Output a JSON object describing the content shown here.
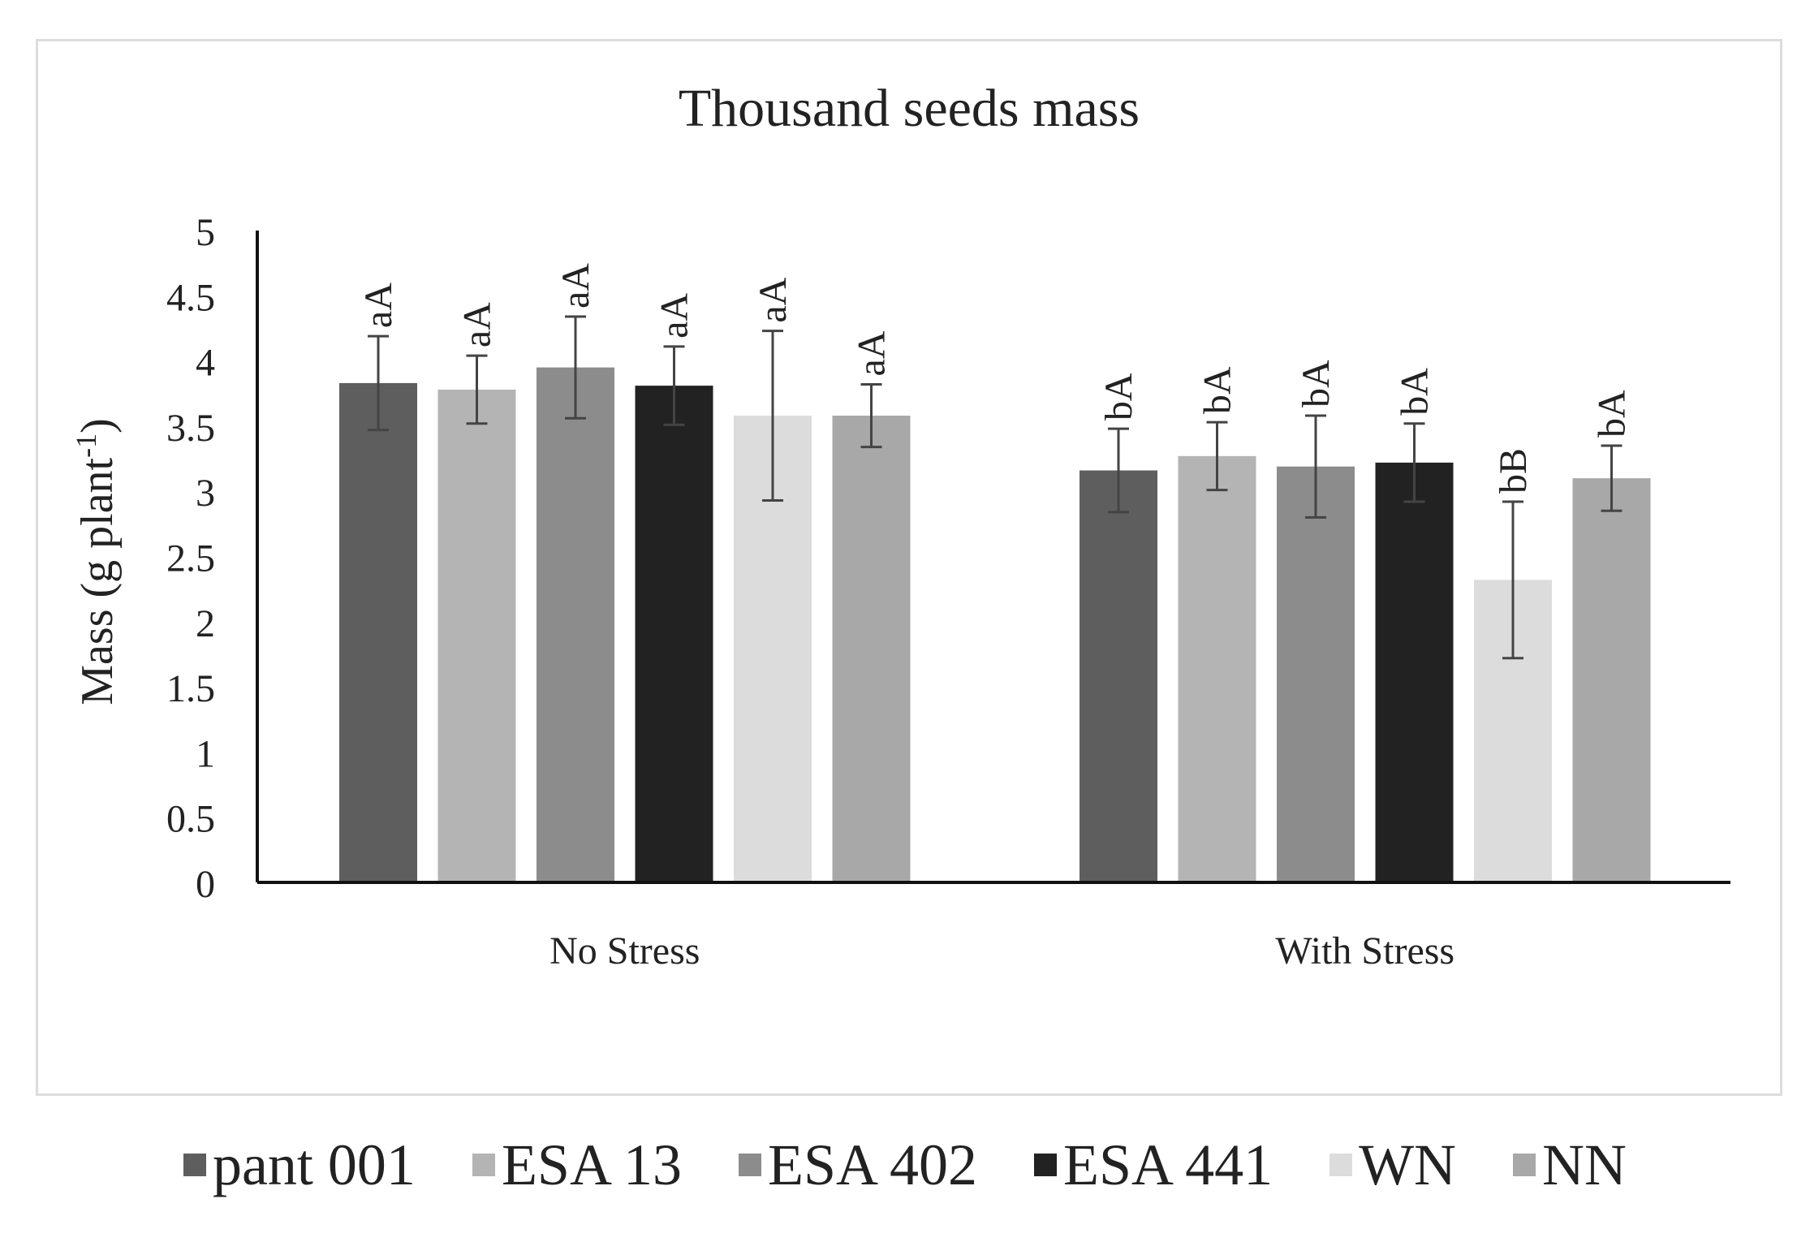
{
  "chart_data": {
    "type": "bar",
    "title": "Thousand seeds mass",
    "ylabel": "Mass (g plant",
    "ylabel_sup": "-1",
    "ylabel_close": ")",
    "xlabel": "",
    "ylim": [
      0,
      5
    ],
    "yticks": [
      "0",
      "0.5",
      "1",
      "1.5",
      "2",
      "2.5",
      "3",
      "3.5",
      "4",
      "4.5",
      "5"
    ],
    "ytick_values": [
      0,
      0.5,
      1,
      1.5,
      2,
      2.5,
      3,
      3.5,
      4,
      4.5,
      5
    ],
    "categories": [
      "No Stress",
      "With Stress"
    ],
    "series": [
      {
        "name": "pant 001",
        "color": "#5e5e5e",
        "values": [
          3.83,
          3.16
        ],
        "errors": [
          0.36,
          0.32
        ],
        "labels": [
          "aA",
          "bA"
        ]
      },
      {
        "name": "ESA 13",
        "color": "#b4b4b4",
        "values": [
          3.78,
          3.27
        ],
        "errors": [
          0.26,
          0.26
        ],
        "labels": [
          "aA",
          "bA"
        ]
      },
      {
        "name": "ESA 402",
        "color": "#8c8c8c",
        "values": [
          3.95,
          3.19
        ],
        "errors": [
          0.39,
          0.39
        ],
        "labels": [
          "aA",
          "bA"
        ]
      },
      {
        "name": "ESA 441",
        "color": "#222222",
        "values": [
          3.81,
          3.22
        ],
        "errors": [
          0.3,
          0.3
        ],
        "labels": [
          "aA",
          "bA"
        ]
      },
      {
        "name": "WN",
        "color": "#dcdcdc",
        "values": [
          3.58,
          2.32
        ],
        "errors": [
          0.65,
          0.6
        ],
        "labels": [
          "aA",
          "bB"
        ]
      },
      {
        "name": "NN",
        "color": "#a8a8a8",
        "values": [
          3.58,
          3.1
        ],
        "errors": [
          0.24,
          0.25
        ],
        "labels": [
          "aA",
          "bA"
        ]
      }
    ],
    "legend_position": "bottom",
    "grid": false
  }
}
